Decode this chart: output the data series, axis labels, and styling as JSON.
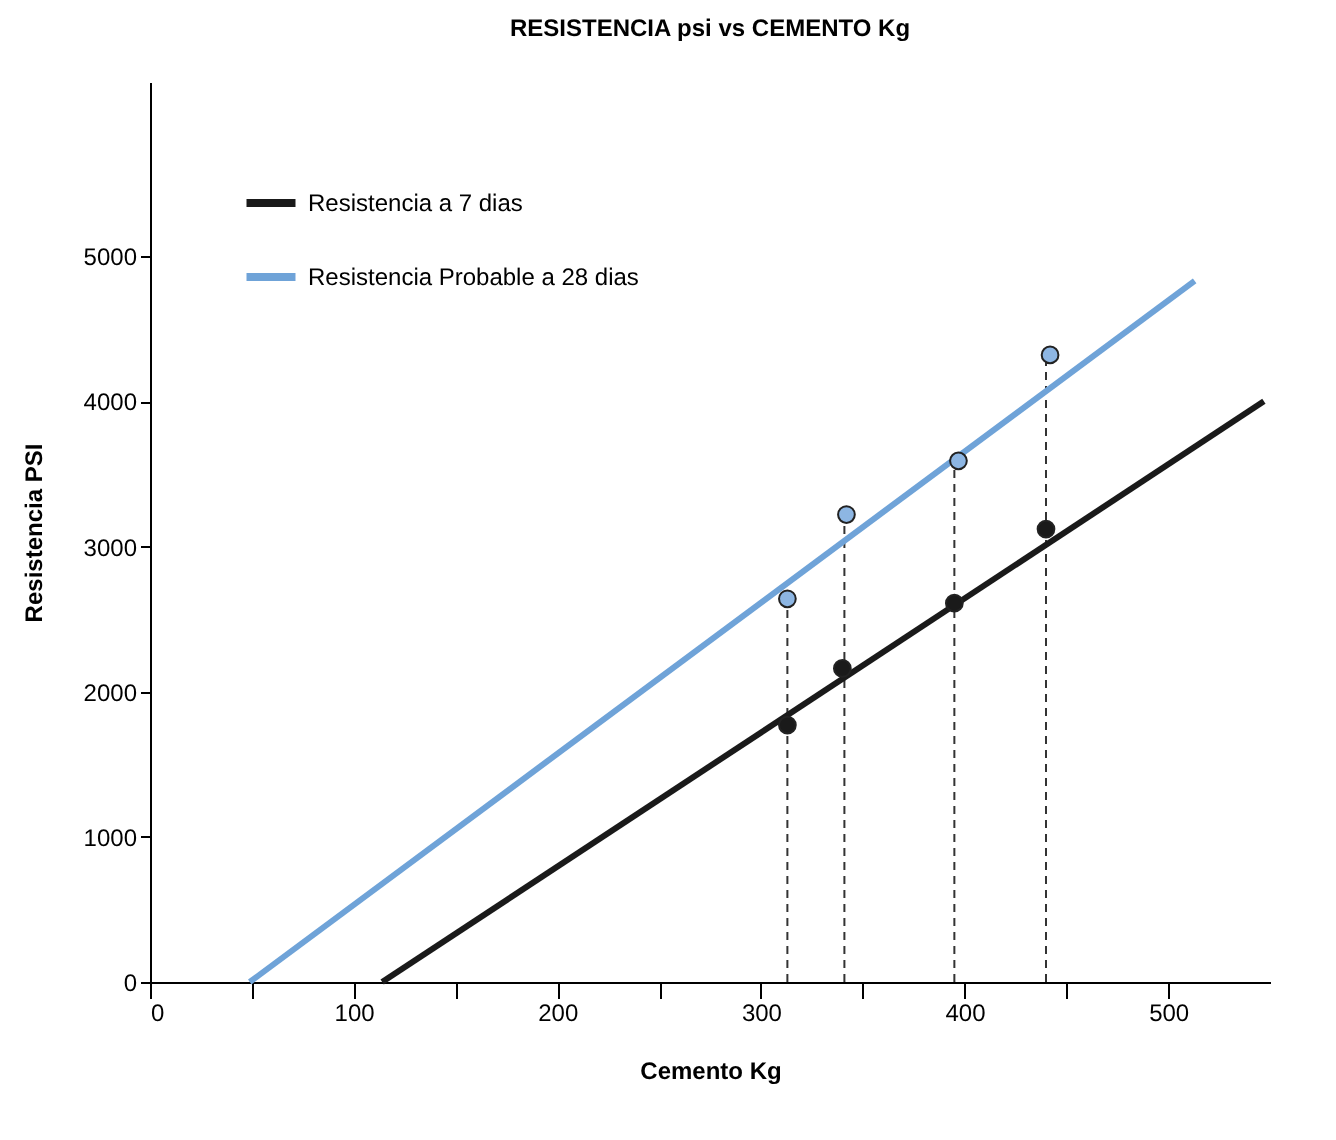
{
  "chart_data": {
    "type": "line",
    "title": "RESISTENCIA psi vs CEMENTO Kg",
    "xlabel": "Cemento Kg",
    "ylabel": "Resistencia PSI",
    "xlim": [
      0,
      550
    ],
    "ylim": [
      0,
      6200
    ],
    "xticks": [
      0,
      {
        "value": 50,
        "label": null
      },
      100,
      {
        "value": 150,
        "label": null
      },
      200,
      {
        "value": 250,
        "label": null
      },
      300,
      {
        "value": 350,
        "label": null
      },
      400,
      {
        "value": 450,
        "label": null
      },
      500
    ],
    "yticks": [
      0,
      1000,
      2000,
      3000,
      4000,
      5000
    ],
    "grid": false,
    "legend": "top left",
    "marker": "none",
    "line_style": "solid",
    "series": [
      {
        "name": "Resistencia a 7 dias",
        "color": "#1a1a1a",
        "x": [
          114,
          547
        ],
        "values": [
          0,
          4000
        ]
      },
      {
        "name": "Resistencia Probable a 28 dias",
        "color": "#6fa3d8",
        "x": [
          49,
          513
        ],
        "values": [
          0,
          4830
        ]
      },
      {
        "type": "scatter",
        "marker": "circle",
        "color": "#1a1a1a",
        "x": [
          313,
          340,
          395,
          440
        ],
        "values": [
          1770,
          2160,
          2610,
          3120
        ]
      },
      {
        "type": "scatter",
        "marker": "circle",
        "color": "#8db6e3",
        "x": [
          313,
          342,
          397,
          442
        ],
        "values": [
          2640,
          3220,
          3590,
          4320
        ]
      }
    ],
    "ref_lines": [
      {
        "axis": "x",
        "value": 313,
        "color": "#333333",
        "line_style": "dashed"
      },
      {
        "axis": "x",
        "value": 341,
        "color": "#333333",
        "line_style": "dashed"
      },
      {
        "axis": "x",
        "value": 395,
        "color": "#333333",
        "line_style": "dashed"
      },
      {
        "axis": "x",
        "value": 440,
        "color": "#333333",
        "line_style": "dashed"
      }
    ]
  }
}
